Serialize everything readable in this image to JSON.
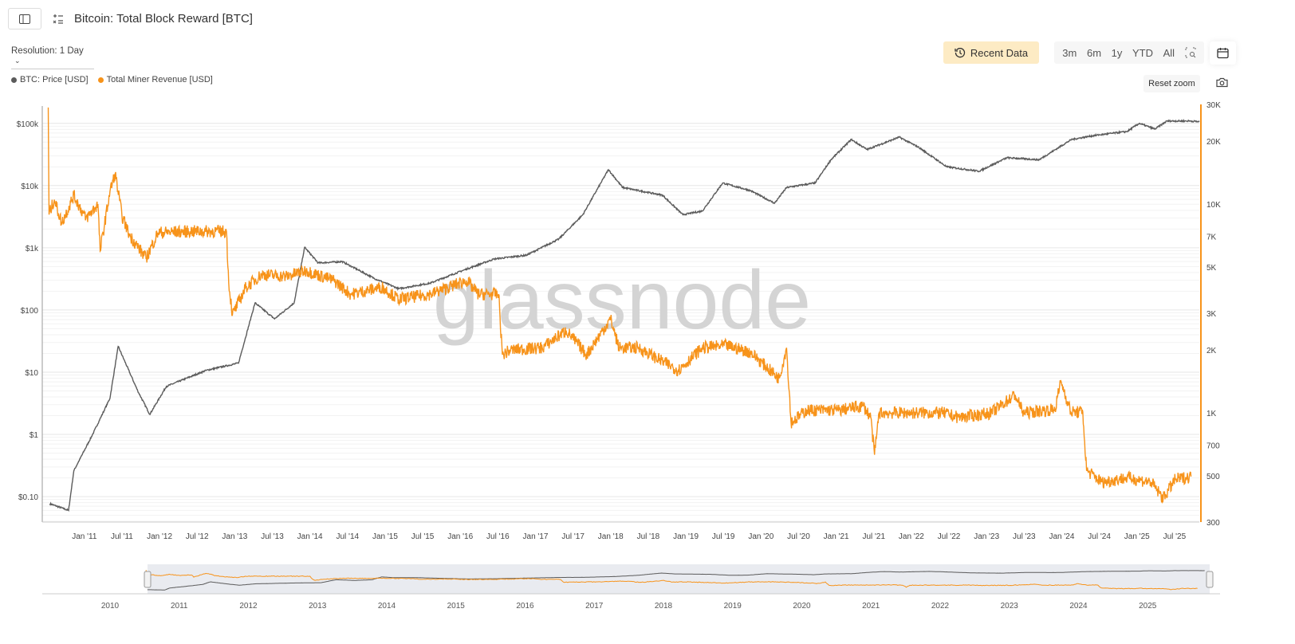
{
  "header": {
    "title": "Bitcoin: Total Block Reward [BTC]",
    "resolution": "Resolution: 1 Day"
  },
  "toolbar": {
    "recent_data": "Recent Data",
    "ranges": [
      "3m",
      "6m",
      "1y",
      "YTD",
      "All"
    ],
    "reset_zoom": "Reset zoom"
  },
  "watermark": "glassnode",
  "colors": {
    "price": "#5b5b5b",
    "revenue": "#f7931a",
    "accent_bg": "#fdebc4"
  },
  "chart_data": {
    "type": "line",
    "title": "Bitcoin: Total Block Reward [BTC]",
    "legend_position": "top-left",
    "legend": [
      "BTC: Price [USD]",
      "Total Miner Revenue [USD]"
    ],
    "x_range": [
      2010.44,
      2025.83
    ],
    "x_ticks": [
      "Jan '11",
      "Jul '11",
      "Jan '12",
      "Jul '12",
      "Jan '13",
      "Jul '13",
      "Jan '14",
      "Jul '14",
      "Jan '15",
      "Jul '15",
      "Jan '16",
      "Jul '16",
      "Jan '17",
      "Jul '17",
      "Jan '18",
      "Jul '18",
      "Jan '19",
      "Jul '19",
      "Jan '20",
      "Jul '20",
      "Jan '21",
      "Jul '21",
      "Jan '22",
      "Jul '22",
      "Jan '23",
      "Jul '23",
      "Jan '24",
      "Jul '24",
      "Jan '25",
      "Jul '25"
    ],
    "y_left": {
      "scale": "log",
      "range": [
        0.039,
        190000
      ],
      "ticks": [
        {
          "v": 100000,
          "l": "$100k"
        },
        {
          "v": 10000,
          "l": "$10k"
        },
        {
          "v": 1000,
          "l": "$1k"
        },
        {
          "v": 100,
          "l": "$100"
        },
        {
          "v": 10,
          "l": "$10"
        },
        {
          "v": 1,
          "l": "$1"
        },
        {
          "v": 0.1,
          "l": "$0.10"
        }
      ]
    },
    "y_right": {
      "scale": "log",
      "range": [
        300,
        30000
      ],
      "ticks": [
        {
          "v": 30000,
          "l": "30K"
        },
        {
          "v": 20000,
          "l": "20K"
        },
        {
          "v": 10000,
          "l": "10K"
        },
        {
          "v": 7000,
          "l": "7K"
        },
        {
          "v": 5000,
          "l": "5K"
        },
        {
          "v": 3000,
          "l": "3K"
        },
        {
          "v": 2000,
          "l": "2K"
        },
        {
          "v": 1000,
          "l": "1K"
        },
        {
          "v": 700,
          "l": "700"
        },
        {
          "v": 500,
          "l": "500"
        },
        {
          "v": 300,
          "l": "300"
        }
      ]
    },
    "navigator_years": [
      "2010",
      "2011",
      "2012",
      "2013",
      "2014",
      "2015",
      "2016",
      "2017",
      "2018",
      "2019",
      "2020",
      "2021",
      "2022",
      "2023",
      "2024",
      "2025"
    ],
    "series": [
      {
        "name": "BTC: Price [USD]",
        "axis": "left",
        "points": [
          [
            2010.54,
            0.077
          ],
          [
            2010.79,
            0.06
          ],
          [
            2010.86,
            0.26
          ],
          [
            2011.11,
            1
          ],
          [
            2011.34,
            3.8
          ],
          [
            2011.45,
            26
          ],
          [
            2011.71,
            5
          ],
          [
            2011.87,
            2.1
          ],
          [
            2012.09,
            5.9
          ],
          [
            2012.62,
            10.7
          ],
          [
            2013.05,
            14
          ],
          [
            2013.27,
            130
          ],
          [
            2013.53,
            72
          ],
          [
            2013.79,
            130
          ],
          [
            2013.93,
            1020
          ],
          [
            2014.11,
            570
          ],
          [
            2014.43,
            600
          ],
          [
            2014.86,
            320
          ],
          [
            2015.18,
            220
          ],
          [
            2015.6,
            270
          ],
          [
            2016.03,
            430
          ],
          [
            2016.45,
            660
          ],
          [
            2016.88,
            760
          ],
          [
            2017.31,
            1380
          ],
          [
            2017.63,
            3400
          ],
          [
            2017.97,
            18000
          ],
          [
            2018.16,
            9300
          ],
          [
            2018.69,
            7000
          ],
          [
            2018.96,
            3400
          ],
          [
            2019.22,
            3900
          ],
          [
            2019.49,
            11000
          ],
          [
            2019.86,
            8300
          ],
          [
            2020.18,
            5200
          ],
          [
            2020.34,
            9300
          ],
          [
            2020.72,
            11000
          ],
          [
            2020.93,
            26000
          ],
          [
            2021.2,
            55000
          ],
          [
            2021.41,
            38000
          ],
          [
            2021.84,
            60000
          ],
          [
            2022.1,
            41000
          ],
          [
            2022.47,
            20000
          ],
          [
            2022.9,
            17000
          ],
          [
            2023.27,
            28000
          ],
          [
            2023.7,
            26000
          ],
          [
            2024.13,
            55000
          ],
          [
            2024.44,
            64000
          ],
          [
            2024.87,
            74000
          ],
          [
            2025.03,
            100000
          ],
          [
            2025.24,
            81000
          ],
          [
            2025.4,
            109000
          ],
          [
            2025.72,
            109000
          ],
          [
            2025.83,
            106000
          ]
        ]
      },
      {
        "name": "Total Miner Revenue [USD]",
        "axis": "right",
        "points": [
          [
            2010.52,
            29000
          ],
          [
            2010.53,
            8900
          ],
          [
            2010.6,
            10500
          ],
          [
            2010.7,
            8100
          ],
          [
            2010.86,
            11000
          ],
          [
            2011.02,
            8500
          ],
          [
            2011.18,
            10000
          ],
          [
            2011.21,
            5950
          ],
          [
            2011.34,
            11500
          ],
          [
            2011.41,
            14000
          ],
          [
            2011.5,
            8800
          ],
          [
            2011.6,
            7100
          ],
          [
            2011.82,
            5500
          ],
          [
            2011.98,
            7300
          ],
          [
            2012.41,
            7400
          ],
          [
            2012.89,
            7400
          ],
          [
            2012.92,
            4200
          ],
          [
            2012.97,
            2950
          ],
          [
            2013.15,
            4000
          ],
          [
            2013.36,
            4600
          ],
          [
            2013.68,
            4500
          ],
          [
            2013.95,
            4800
          ],
          [
            2014.32,
            4300
          ],
          [
            2014.54,
            3700
          ],
          [
            2014.96,
            4000
          ],
          [
            2015.18,
            3500
          ],
          [
            2015.6,
            3700
          ],
          [
            2016.08,
            4300
          ],
          [
            2016.24,
            3700
          ],
          [
            2016.51,
            3700
          ],
          [
            2016.56,
            1900
          ],
          [
            2016.67,
            2000
          ],
          [
            2017.09,
            2050
          ],
          [
            2017.41,
            2480
          ],
          [
            2017.68,
            1900
          ],
          [
            2018.0,
            2820
          ],
          [
            2018.11,
            2050
          ],
          [
            2018.37,
            2050
          ],
          [
            2018.9,
            1600
          ],
          [
            2019.22,
            2050
          ],
          [
            2019.54,
            2100
          ],
          [
            2019.86,
            1950
          ],
          [
            2020.24,
            1460
          ],
          [
            2020.34,
            2050
          ],
          [
            2020.4,
            900
          ],
          [
            2020.61,
            1030
          ],
          [
            2021.04,
            1030
          ],
          [
            2021.36,
            1080
          ],
          [
            2021.46,
            950
          ],
          [
            2021.51,
            630
          ],
          [
            2021.57,
            1000
          ],
          [
            2021.99,
            1000
          ],
          [
            2022.42,
            1000
          ],
          [
            2022.63,
            950
          ],
          [
            2023.06,
            1000
          ],
          [
            2023.38,
            1220
          ],
          [
            2023.49,
            1000
          ],
          [
            2023.91,
            1040
          ],
          [
            2023.99,
            1420
          ],
          [
            2024.12,
            1010
          ],
          [
            2024.28,
            1010
          ],
          [
            2024.33,
            530
          ],
          [
            2024.54,
            465
          ],
          [
            2024.87,
            490
          ],
          [
            2025.19,
            465
          ],
          [
            2025.35,
            390
          ],
          [
            2025.51,
            480
          ],
          [
            2025.72,
            495
          ]
        ]
      }
    ]
  }
}
